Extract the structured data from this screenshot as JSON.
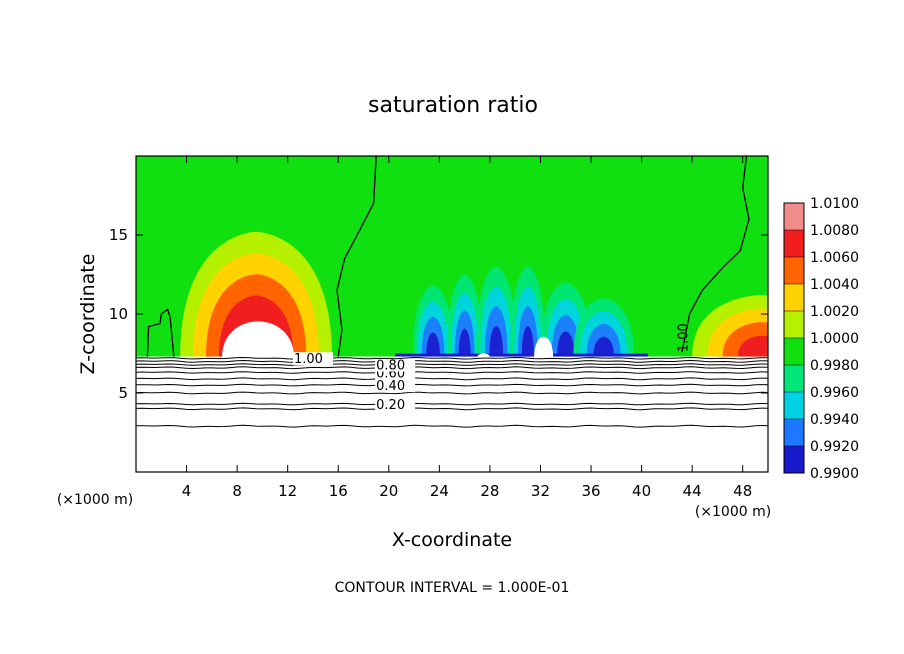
{
  "chart_data": {
    "type": "heatmap",
    "title": "saturation ratio",
    "xlabel": "X-coordinate",
    "ylabel": "Z-coordinate",
    "x_unit_left": "(×1000 m)",
    "x_unit_right": "(×1000 m)",
    "xlim": [
      0,
      50
    ],
    "ylim": [
      0,
      20
    ],
    "x_ticks": [
      4,
      8,
      12,
      16,
      20,
      24,
      28,
      32,
      36,
      40,
      44,
      48
    ],
    "y_ticks": [
      5,
      10,
      15
    ],
    "footnote": "CONTOUR INTERVAL = 1.000E-01",
    "colorbar": {
      "levels": [
        {
          "value": "0.9900",
          "color": "#6a0dad"
        },
        {
          "value": "0.9920",
          "color": "#1a1acd"
        },
        {
          "value": "0.9940",
          "color": "#1e78ff"
        },
        {
          "value": "0.9960",
          "color": "#00d2e6"
        },
        {
          "value": "0.9980",
          "color": "#00e678"
        },
        {
          "value": "1.0000",
          "color": "#10e010"
        },
        {
          "value": "1.0020",
          "color": "#b4f000"
        },
        {
          "value": "1.0040",
          "color": "#ffd200"
        },
        {
          "value": "1.0060",
          "color": "#ff6400"
        },
        {
          "value": "1.0080",
          "color": "#f01e1e"
        },
        {
          "value": "1.0100",
          "color": "#f08c8c"
        }
      ]
    },
    "contour_lines": [
      {
        "value": 0.2,
        "label": "0.20",
        "z": 4.3,
        "label_x": 19.0
      },
      {
        "value": 0.4,
        "label": "0.40",
        "z": 5.5,
        "label_x": 19.0
      },
      {
        "value": 0.6,
        "label": "0.60",
        "z": 6.3,
        "label_x": 19.0
      },
      {
        "value": 0.8,
        "label": "0.80",
        "z": 6.8,
        "label_x": 19.0
      },
      {
        "value": 1.0,
        "label": "1.00",
        "z": 7.2,
        "label_x": 12.5
      }
    ],
    "contour_extra_lines_z": [
      2.9,
      4.0,
      5.0,
      5.9,
      6.6,
      7.0
    ],
    "contour_label_right": {
      "label": "1.00",
      "x": 43.3,
      "z": 8.5
    },
    "cloud_base_z": 7.3,
    "warm_dome": {
      "x_center": 9.5,
      "half_width": 6.0,
      "top_z": 15.2
    },
    "cloud_gaps": [
      {
        "x_left": 6.8,
        "x_right": 12.5,
        "top_z": 10.3
      },
      {
        "x_left": 27.0,
        "x_right": 28.0,
        "top_z": 7.6
      },
      {
        "x_left": 31.5,
        "x_right": 33.0,
        "top_z": 9.0
      }
    ],
    "dry_bands": [
      {
        "x_center": 23.5,
        "half_width": 1.6,
        "top_z": 11.8
      },
      {
        "x_center": 26.0,
        "half_width": 1.4,
        "top_z": 12.5
      },
      {
        "x_center": 28.5,
        "half_width": 1.6,
        "top_z": 13.0
      },
      {
        "x_center": 31.0,
        "half_width": 1.4,
        "top_z": 13.0
      },
      {
        "x_center": 34.0,
        "half_width": 2.0,
        "top_z": 12.0
      },
      {
        "x_center": 37.0,
        "half_width": 2.4,
        "top_z": 11.0
      }
    ],
    "warm_right": {
      "x_center": 49.5,
      "half_width": 5.5,
      "top_z": 11.2
    },
    "contour_1_left": [
      [
        0.9,
        7.3
      ],
      [
        1.0,
        9.2
      ],
      [
        1.9,
        9.4
      ],
      [
        2.0,
        10.0
      ],
      [
        2.5,
        10.3
      ],
      [
        2.7,
        9.8
      ],
      [
        3.0,
        7.3
      ]
    ],
    "contour_1_mid": [
      [
        16.0,
        7.3
      ],
      [
        16.3,
        9.0
      ],
      [
        15.9,
        11.5
      ],
      [
        16.5,
        13.5
      ],
      [
        17.5,
        15.0
      ],
      [
        18.8,
        17.0
      ],
      [
        19.0,
        20.0
      ]
    ],
    "contour_1_right": [
      [
        43.2,
        7.6
      ],
      [
        43.8,
        10.0
      ],
      [
        44.8,
        11.5
      ],
      [
        46.5,
        13.0
      ],
      [
        47.8,
        14.0
      ],
      [
        48.5,
        16.0
      ],
      [
        48.0,
        18.0
      ],
      [
        48.3,
        20.0
      ]
    ]
  }
}
